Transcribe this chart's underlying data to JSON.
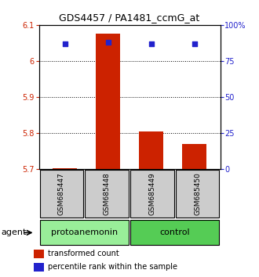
{
  "title": "GDS4457 / PA1481_ccmG_at",
  "samples": [
    "GSM685447",
    "GSM685448",
    "GSM685449",
    "GSM685450"
  ],
  "transformed_counts": [
    5.703,
    6.075,
    5.805,
    5.77
  ],
  "percentile_ranks": [
    87,
    88,
    87,
    87
  ],
  "ylim_left": [
    5.7,
    6.1
  ],
  "ylim_right": [
    0,
    100
  ],
  "yticks_left": [
    5.7,
    5.8,
    5.9,
    6.0,
    6.1
  ],
  "yticks_right": [
    0,
    25,
    50,
    75,
    100
  ],
  "ytick_labels_left": [
    "5.7",
    "5.8",
    "5.9",
    "6",
    "6.1"
  ],
  "ytick_labels_right": [
    "0",
    "25",
    "50",
    "75",
    "100%"
  ],
  "bar_color": "#cc2200",
  "dot_color": "#2222cc",
  "label_bar": "transformed count",
  "label_dot": "percentile rank within the sample",
  "bar_width": 0.55,
  "agent_label": "agent",
  "group_defs": [
    {
      "name": "protoanemonin",
      "start": 0,
      "end": 2,
      "color": "#99ee99"
    },
    {
      "name": "control",
      "start": 2,
      "end": 4,
      "color": "#55cc55"
    }
  ],
  "sample_box_color": "#cccccc",
  "title_fontsize": 9,
  "tick_fontsize": 7,
  "legend_fontsize": 7,
  "sample_fontsize": 6.5,
  "group_fontsize": 8
}
